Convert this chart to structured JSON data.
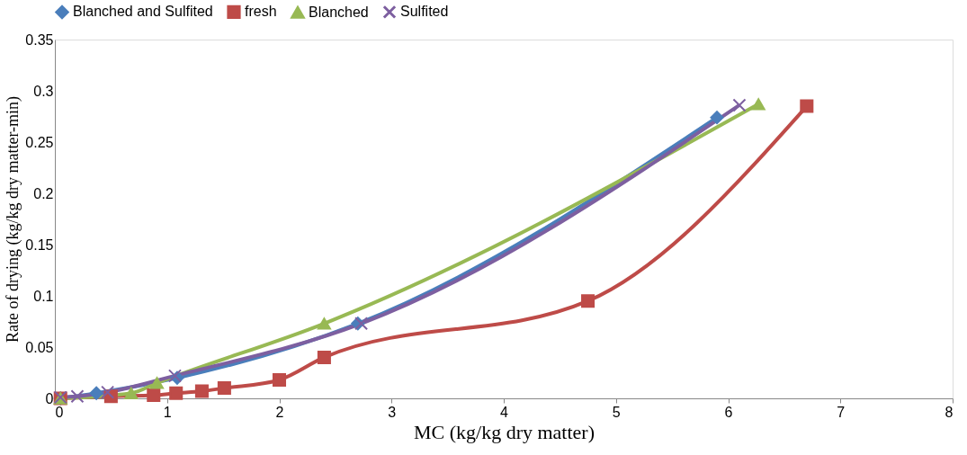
{
  "chart_data": {
    "type": "line",
    "xlabel": "MC (kg/kg dry matter)",
    "ylabel": "Rate of drying (kg/kg dry matter-min)",
    "xlim": [
      0,
      8
    ],
    "xticks": [
      0,
      1,
      2,
      3,
      4,
      5,
      6,
      7,
      8
    ],
    "ylim": [
      0,
      0.35
    ],
    "yticks": [
      0,
      0.05,
      0.1,
      0.15,
      0.2,
      0.25,
      0.3,
      0.35
    ],
    "grid": false,
    "legend": "top",
    "line_style": "solid",
    "series": [
      {
        "name": "Blanched and Sulfited",
        "color": "#4a7ebb",
        "marker": "diamond",
        "x": [
          0.05,
          0.37,
          1.09,
          2.7,
          5.9
        ],
        "values": [
          0,
          0.005,
          0.02,
          0.073,
          0.274
        ]
      },
      {
        "name": "fresh",
        "color": "#be4b48",
        "marker": "square",
        "x": [
          0.05,
          0.5,
          0.88,
          1.08,
          1.31,
          1.51,
          2.0,
          2.4,
          4.75,
          6.7
        ],
        "values": [
          0,
          0.002,
          0.003,
          0.005,
          0.007,
          0.01,
          0.018,
          0.04,
          0.095,
          0.285
        ]
      },
      {
        "name": "Blanched",
        "color": "#98b954",
        "marker": "triangle",
        "x": [
          0.05,
          0.68,
          0.91,
          2.4,
          6.27
        ],
        "values": [
          0,
          0.005,
          0.015,
          0.073,
          0.287
        ]
      },
      {
        "name": "Sulfited",
        "color": "#7d5fa0",
        "marker": "cross",
        "x": [
          0.05,
          0.2,
          0.47,
          1.07,
          2.73,
          6.1
        ],
        "values": [
          0.001,
          0.002,
          0.006,
          0.022,
          0.073,
          0.286
        ]
      }
    ]
  }
}
